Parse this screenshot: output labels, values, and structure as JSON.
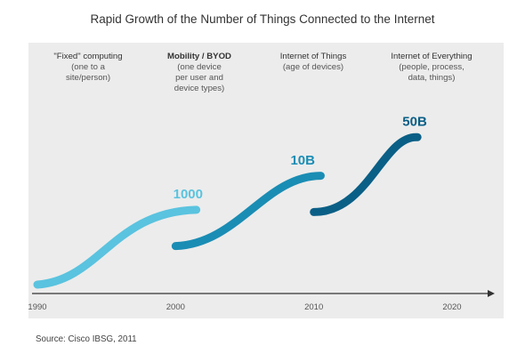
{
  "title": "Rapid Growth of the Number of Things Connected to the Internet",
  "source": "Source: Cisco IBSG, 2011",
  "eras": [
    {
      "head": "\"Fixed\" computing",
      "bold": false,
      "line1": "(one to a",
      "line2": "site/person)"
    },
    {
      "head": "Mobility / BYOD",
      "bold": true,
      "line1": "(one device",
      "line2": "per user and",
      "line3": "device types)"
    },
    {
      "head": "Internet of Things",
      "bold": false,
      "line1": "(age of devices)"
    },
    {
      "head": "Internet of Everything",
      "bold": false,
      "line1": "(people, process,",
      "line2": "data, things)"
    }
  ],
  "chart_data": {
    "type": "line",
    "title": "Rapid Growth of the Number of Things Connected to the Internet",
    "x_ticks": [
      "1990",
      "2000",
      "2010",
      "2020"
    ],
    "series": [
      {
        "color": "#5ac3df",
        "label": "1000"
      },
      {
        "color": "#1a8db4",
        "label": "10B"
      },
      {
        "color": "#0d79a2",
        "label": "10B"
      },
      {
        "color": "#0a5f86",
        "label": "50B"
      }
    ],
    "curves": [
      {
        "x": [
          1990,
          1994.5,
          1997.5,
          2001.5
        ],
        "y": [
          0,
          2,
          24,
          33
        ]
      },
      {
        "x": [
          2000,
          2004.5,
          2007,
          2010.5
        ],
        "y": [
          17,
          23,
          46,
          48
        ]
      },
      {
        "x": [
          2010,
          2013,
          2014.5,
          2017.5
        ],
        "y": [
          32,
          34,
          55,
          65
        ]
      }
    ]
  }
}
